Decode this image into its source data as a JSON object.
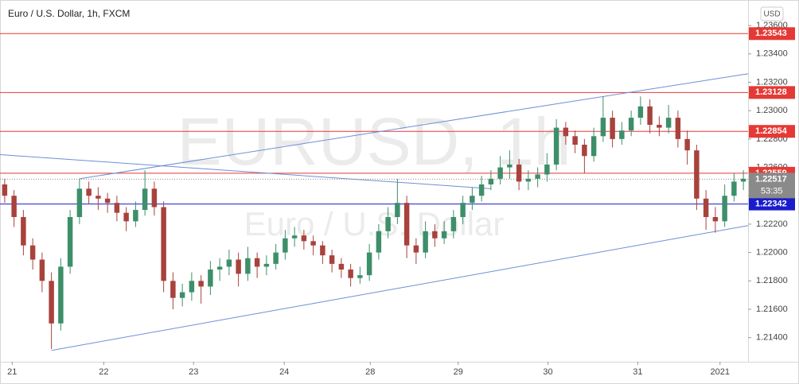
{
  "chart_data": {
    "type": "candlestick",
    "title": "Euro / U.S. Dollar, 1h, FXCM",
    "currency": "USD",
    "watermark": "EURUSD, 1h",
    "watermark_subtitle": "Euro / U.S. Dollar",
    "countdown": "53:35",
    "up_color": "#3d8f6a",
    "down_color": "#a8423c",
    "xlim": [
      -0.5,
      79.5
    ],
    "xticks": [
      {
        "value": 0.8,
        "label": "21"
      },
      {
        "value": 10.6,
        "label": "22"
      },
      {
        "value": 20.2,
        "label": "23"
      },
      {
        "value": 29.9,
        "label": "24"
      },
      {
        "value": 39.1,
        "label": "28"
      },
      {
        "value": 48.5,
        "label": "29"
      },
      {
        "value": 58.1,
        "label": "30"
      },
      {
        "value": 67.7,
        "label": "31"
      },
      {
        "value": 76.5,
        "label": "2021"
      }
    ],
    "ylim": [
      1.2123,
      1.2378
    ],
    "yticks": [
      {
        "value": 1.214,
        "label": "1.21400"
      },
      {
        "value": 1.216,
        "label": "1.21600"
      },
      {
        "value": 1.218,
        "label": "1.21800"
      },
      {
        "value": 1.22,
        "label": "1.22000"
      },
      {
        "value": 1.222,
        "label": "1.22200"
      },
      {
        "value": 1.224,
        "label": "1.22400"
      },
      {
        "value": 1.226,
        "label": "1.22600"
      },
      {
        "value": 1.228,
        "label": "1.22800"
      },
      {
        "value": 1.23,
        "label": "1.23000"
      },
      {
        "value": 1.232,
        "label": "1.23200"
      },
      {
        "value": 1.234,
        "label": "1.23400"
      },
      {
        "value": 1.236,
        "label": "1.23600"
      }
    ],
    "levels": [
      {
        "value": 1.23543,
        "color": "#e53935"
      },
      {
        "value": 1.23128,
        "color": "#e53935"
      },
      {
        "value": 1.22854,
        "color": "#e53935"
      },
      {
        "value": 1.22559,
        "color": "#e53935"
      },
      {
        "value": 1.22342,
        "color": "#1a1ccc"
      }
    ],
    "last_price": 1.22517,
    "last_price_color": "#8a8a8a",
    "trendline_color": "#6d8fd6",
    "trendlines": [
      {
        "from": [
          5,
          1.2131
        ],
        "to": [
          79.5,
          1.2219
        ]
      },
      {
        "from": [
          8,
          1.2252
        ],
        "to": [
          79.5,
          1.2326
        ]
      },
      {
        "from": [
          -0.5,
          1.2269
        ],
        "to": [
          52,
          1.2245
        ]
      }
    ],
    "candles": [
      [
        1.2248,
        1.2252,
        1.2235,
        1.224
      ],
      [
        1.224,
        1.2244,
        1.2218,
        1.2225
      ],
      [
        1.2225,
        1.223,
        1.2198,
        1.2205
      ],
      [
        1.2205,
        1.221,
        1.2188,
        1.2195
      ],
      [
        1.2195,
        1.22,
        1.2172,
        1.218
      ],
      [
        1.218,
        1.2186,
        1.2132,
        1.215
      ],
      [
        1.215,
        1.2196,
        1.2145,
        1.219
      ],
      [
        1.219,
        1.223,
        1.2185,
        1.2225
      ],
      [
        1.2225,
        1.2252,
        1.222,
        1.2245
      ],
      [
        1.2245,
        1.225,
        1.2234,
        1.224
      ],
      [
        1.224,
        1.2246,
        1.223,
        1.2238
      ],
      [
        1.2238,
        1.2242,
        1.2228,
        1.2235
      ],
      [
        1.2235,
        1.224,
        1.2222,
        1.2228
      ],
      [
        1.2228,
        1.2232,
        1.2215,
        1.2222
      ],
      [
        1.2222,
        1.2236,
        1.2218,
        1.223
      ],
      [
        1.223,
        1.2258,
        1.2226,
        1.2245
      ],
      [
        1.2245,
        1.225,
        1.2226,
        1.2232
      ],
      [
        1.2232,
        1.2236,
        1.2172,
        1.218
      ],
      [
        1.218,
        1.2186,
        1.216,
        1.2168
      ],
      [
        1.2168,
        1.2178,
        1.2162,
        1.2172
      ],
      [
        1.2172,
        1.2186,
        1.2166,
        1.218
      ],
      [
        1.218,
        1.2184,
        1.2164,
        1.2176
      ],
      [
        1.2176,
        1.2194,
        1.217,
        1.2188
      ],
      [
        1.2188,
        1.2196,
        1.218,
        1.219
      ],
      [
        1.219,
        1.2202,
        1.2184,
        1.2195
      ],
      [
        1.2195,
        1.22,
        1.2176,
        1.2185
      ],
      [
        1.2185,
        1.2204,
        1.218,
        1.2196
      ],
      [
        1.2196,
        1.22,
        1.2182,
        1.219
      ],
      [
        1.219,
        1.2198,
        1.2184,
        1.2192
      ],
      [
        1.2192,
        1.2206,
        1.2188,
        1.22
      ],
      [
        1.22,
        1.2216,
        1.2195,
        1.221
      ],
      [
        1.221,
        1.2218,
        1.2204,
        1.2212
      ],
      [
        1.2212,
        1.2216,
        1.2202,
        1.2208
      ],
      [
        1.2208,
        1.2212,
        1.2198,
        1.2205
      ],
      [
        1.2205,
        1.2208,
        1.2192,
        1.2198
      ],
      [
        1.2198,
        1.2202,
        1.2186,
        1.2192
      ],
      [
        1.2192,
        1.2196,
        1.2182,
        1.2188
      ],
      [
        1.2188,
        1.2192,
        1.2176,
        1.2182
      ],
      [
        1.2182,
        1.219,
        1.2178,
        1.2184
      ],
      [
        1.2184,
        1.2206,
        1.218,
        1.22
      ],
      [
        1.22,
        1.222,
        1.2195,
        1.2215
      ],
      [
        1.2215,
        1.2232,
        1.221,
        1.2225
      ],
      [
        1.2225,
        1.2252,
        1.222,
        1.2235
      ],
      [
        1.2235,
        1.224,
        1.2196,
        1.2205
      ],
      [
        1.2205,
        1.221,
        1.2192,
        1.22
      ],
      [
        1.22,
        1.2222,
        1.2196,
        1.2215
      ],
      [
        1.2215,
        1.222,
        1.2204,
        1.221
      ],
      [
        1.221,
        1.2222,
        1.2206,
        1.2215
      ],
      [
        1.2215,
        1.223,
        1.221,
        1.2225
      ],
      [
        1.2225,
        1.224,
        1.222,
        1.2235
      ],
      [
        1.2235,
        1.2246,
        1.223,
        1.224
      ],
      [
        1.224,
        1.2254,
        1.2236,
        1.2248
      ],
      [
        1.2248,
        1.2258,
        1.2244,
        1.2252
      ],
      [
        1.2252,
        1.2268,
        1.2248,
        1.226
      ],
      [
        1.226,
        1.2272,
        1.2252,
        1.2262
      ],
      [
        1.2262,
        1.2266,
        1.2244,
        1.225
      ],
      [
        1.225,
        1.2258,
        1.2244,
        1.2252
      ],
      [
        1.2252,
        1.226,
        1.2246,
        1.2255
      ],
      [
        1.2255,
        1.227,
        1.225,
        1.2262
      ],
      [
        1.2262,
        1.2294,
        1.2258,
        1.2288
      ],
      [
        1.2288,
        1.2292,
        1.2276,
        1.2282
      ],
      [
        1.2282,
        1.2286,
        1.227,
        1.2276
      ],
      [
        1.2276,
        1.228,
        1.2256,
        1.2268
      ],
      [
        1.2268,
        1.2288,
        1.2264,
        1.2282
      ],
      [
        1.2282,
        1.231,
        1.2278,
        1.2295
      ],
      [
        1.2295,
        1.23,
        1.2274,
        1.228
      ],
      [
        1.228,
        1.2292,
        1.2276,
        1.2286
      ],
      [
        1.2286,
        1.23,
        1.2282,
        1.2295
      ],
      [
        1.2295,
        1.231,
        1.229,
        1.2303
      ],
      [
        1.2303,
        1.2308,
        1.2284,
        1.229
      ],
      [
        1.229,
        1.2296,
        1.2282,
        1.2288
      ],
      [
        1.2288,
        1.2304,
        1.2284,
        1.2295
      ],
      [
        1.2295,
        1.23,
        1.2274,
        1.228
      ],
      [
        1.228,
        1.2286,
        1.2262,
        1.2272
      ],
      [
        1.2272,
        1.2276,
        1.223,
        1.2238
      ],
      [
        1.2238,
        1.2244,
        1.2216,
        1.2225
      ],
      [
        1.2225,
        1.2232,
        1.2214,
        1.2222
      ],
      [
        1.2222,
        1.2248,
        1.2218,
        1.224
      ],
      [
        1.224,
        1.2256,
        1.2236,
        1.225
      ],
      [
        1.225,
        1.2258,
        1.2244,
        1.2252
      ]
    ]
  }
}
